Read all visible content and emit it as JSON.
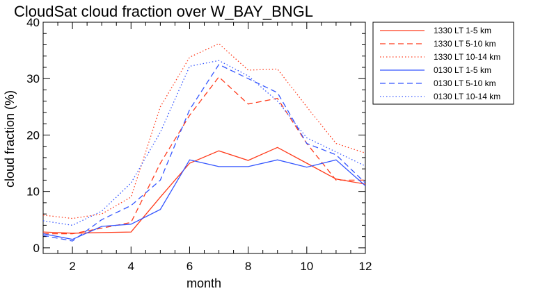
{
  "chart_data": {
    "type": "line",
    "title": "CloudSat cloud fraction over W_BAY_BNGL",
    "xlabel": "month",
    "ylabel": "cloud fraction (%)",
    "xlim": [
      1,
      12
    ],
    "ylim": [
      -1,
      40
    ],
    "xticks": [
      2,
      4,
      6,
      8,
      10,
      12
    ],
    "yticks": [
      0,
      10,
      20,
      30,
      40
    ],
    "grid": false,
    "legend_position": "outside-right",
    "x": [
      1,
      2,
      3,
      4,
      5,
      6,
      7,
      8,
      9,
      10,
      11,
      12
    ],
    "series": [
      {
        "name": "1330 LT 1-5 km",
        "color": "#ff3a1a",
        "dash": "solid",
        "values": [
          2.8,
          2.6,
          2.7,
          2.8,
          9.0,
          15.0,
          17.2,
          15.5,
          17.8,
          15.0,
          12.2,
          11.3
        ]
      },
      {
        "name": "1330 LT 5-10 km",
        "color": "#ff3a1a",
        "dash": "dashed",
        "values": [
          2.5,
          2.5,
          3.5,
          4.5,
          15.0,
          23.5,
          30.3,
          25.5,
          26.5,
          18.5,
          12.0,
          12.0
        ]
      },
      {
        "name": "1330 LT 10-14 km",
        "color": "#ff3a1a",
        "dash": "dotted",
        "values": [
          5.8,
          5.2,
          6.0,
          9.0,
          25.0,
          33.8,
          36.2,
          31.5,
          31.7,
          25.0,
          18.5,
          16.8
        ]
      },
      {
        "name": "0130 LT 1-5 km",
        "color": "#3355ff",
        "dash": "solid",
        "values": [
          2.5,
          1.5,
          3.8,
          4.2,
          6.8,
          15.6,
          14.4,
          14.4,
          15.6,
          14.3,
          15.6,
          11.0
        ]
      },
      {
        "name": "0130 LT 5-10 km",
        "color": "#3355ff",
        "dash": "dashed",
        "values": [
          2.2,
          1.2,
          5.0,
          7.5,
          12.0,
          24.5,
          32.5,
          30.0,
          27.5,
          18.5,
          16.5,
          11.5
        ]
      },
      {
        "name": "0130 LT 10-14 km",
        "color": "#3355ff",
        "dash": "dotted",
        "values": [
          4.8,
          4.0,
          6.5,
          11.5,
          20.5,
          32.2,
          33.2,
          30.5,
          26.0,
          19.5,
          17.0,
          14.5
        ]
      }
    ]
  }
}
